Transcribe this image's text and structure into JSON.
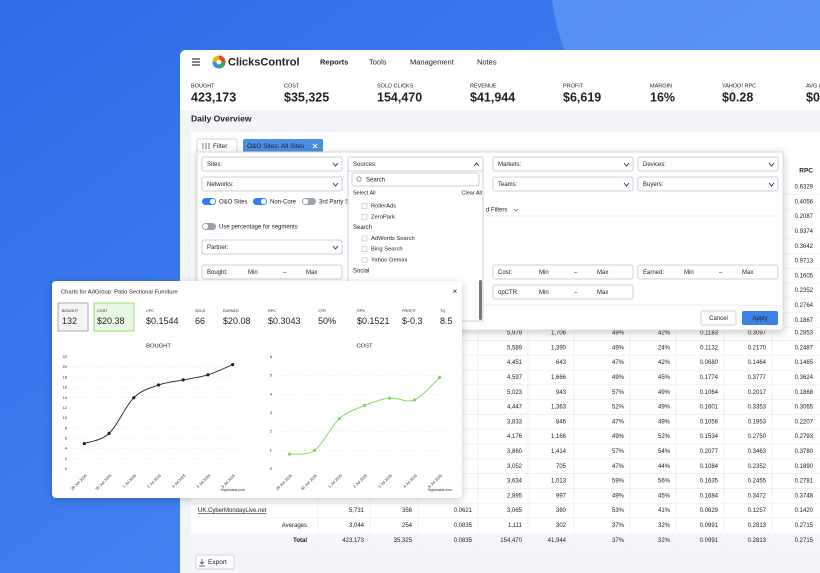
{
  "brand": "ClicksControl",
  "nav": [
    "Reports",
    "Tools",
    "Management",
    "Notes"
  ],
  "kpis": [
    {
      "label": "BOUGHT",
      "value": "423,173"
    },
    {
      "label": "COST",
      "value": "$35,325"
    },
    {
      "label": "SOLD CLICKS",
      "value": "154,470"
    },
    {
      "label": "REVENUE",
      "value": "$41,944"
    },
    {
      "label": "PROFIT",
      "value": "$6,619"
    },
    {
      "label": "MARGIN",
      "value": "16%"
    },
    {
      "label": "YAHOO! RPC",
      "value": "$0.28"
    },
    {
      "label": "AVG I",
      "value": "$0."
    }
  ],
  "section_title": "Daily Overview",
  "filter_button": "Filter",
  "chip": "O&O Sites: All Sites",
  "filters": {
    "left_selects": [
      "Sites:",
      "Networks:"
    ],
    "toggles": [
      {
        "label": "O&O Sites",
        "on": true
      },
      {
        "label": "Non-Core",
        "on": true
      },
      {
        "label": "3rd Party S",
        "on": false
      }
    ],
    "percentage": "Use percentage for segments",
    "partner": "Partner:",
    "sources": "Sources:",
    "right_selects": [
      "Markets:",
      "Devices:",
      "Teams:",
      "Buyers:"
    ],
    "ranges": [
      "Bought:",
      "Cost:",
      "Earned:",
      "opCTR:"
    ],
    "min": "Min",
    "dash": "–",
    "max": "Max",
    "more": "d Filters",
    "cancel": "Cancel",
    "apply": "Apply"
  },
  "sources_dropdown": {
    "search": "Search",
    "select_all": "Select All",
    "clear_all": "Clear All",
    "groups": [
      {
        "options": [
          "RollerAds",
          "ZeroPark"
        ]
      },
      {
        "group": "Search",
        "options": [
          "AdWords Search",
          "Bing Search",
          "Yahoo Gemini"
        ]
      },
      {
        "group": "Social",
        "options": []
      }
    ]
  },
  "table": {
    "rpc_header": "RPC",
    "rpc_upper": [
      "0.6329",
      "0.4056",
      "0.2087",
      "0.9374",
      "0.3642",
      "0.9713",
      "0.1605",
      "0.2352",
      "0.2764",
      "0.1867"
    ],
    "rows": [
      [
        "5,979",
        "1,706",
        "49%",
        "42%",
        "0.1183",
        "0.3097",
        "0.2853"
      ],
      [
        "5,589",
        "1,390",
        "49%",
        "24%",
        "0.1132",
        "0.2170",
        "0.2487"
      ],
      [
        "4,451",
        "643",
        "47%",
        "42%",
        "0.0680",
        "0.1464",
        "0.1465"
      ],
      [
        "4,597",
        "1,666",
        "49%",
        "45%",
        "0.1774",
        "0.3777",
        "0.3624"
      ],
      [
        "5,023",
        "943",
        "57%",
        "49%",
        "0.1064",
        "0.2017",
        "0.1868"
      ],
      [
        "4,447",
        "1,363",
        "52%",
        "49%",
        "0.1601",
        "0.3353",
        "0.3065"
      ],
      [
        "3,833",
        "846",
        "47%",
        "49%",
        "0.1056",
        "0.1953",
        "0.2207"
      ],
      [
        "4,176",
        "1,166",
        "49%",
        "52%",
        "0.1534",
        "0.2750",
        "0.2793"
      ],
      [
        "3,860",
        "1,414",
        "57%",
        "54%",
        "0.2077",
        "0.3463",
        "0.3780"
      ],
      [
        "3,052",
        "705",
        "47%",
        "44%",
        "0.1084",
        "0.2352",
        "0.1890"
      ],
      [
        "3,634",
        "1,013",
        "59%",
        "56%",
        "0.1635",
        "0.2455",
        "0.2781"
      ],
      [
        "2,895",
        "997",
        "49%",
        "45%",
        "0.1684",
        "0.3472",
        "0.3748"
      ]
    ],
    "site_row": {
      "name": "UK.CyberMondayLive.net",
      "cells": [
        "5,731",
        "356",
        "0.0621",
        "3,065",
        "360",
        "53%",
        "41%",
        "0.0629",
        "0.1257",
        "0.1420"
      ]
    },
    "averages": {
      "label": "Averages",
      "cells": [
        "3,044",
        "254",
        "0.0835",
        "1,111",
        "302",
        "37%",
        "32%",
        "0.0991",
        "0.2813",
        "0.2715"
      ]
    },
    "total": {
      "label": "Total",
      "cells": [
        "423,173",
        "35,325",
        "0.0835",
        "154,470",
        "41,944",
        "37%",
        "32%",
        "0.0991",
        "0.2813",
        "0.2715"
      ]
    }
  },
  "export": "Export",
  "popup": {
    "title": "Charts for AdGroup: Patio Sectional Furniture",
    "close": "×",
    "kpis": [
      {
        "label": "BOUGHT",
        "value": "132"
      },
      {
        "label": "COST",
        "value": "$20.38"
      },
      {
        "label": "CPC",
        "value": "$0.1544"
      },
      {
        "label": "SOLD",
        "value": "66"
      },
      {
        "label": "EARNED",
        "value": "$20.08"
      },
      {
        "label": "RPC",
        "value": "$0.3043"
      },
      {
        "label": "CTR",
        "value": "50%"
      },
      {
        "label": "RPS",
        "value": "$0.1521"
      },
      {
        "label": "PROFIT",
        "value": "$-0.3"
      },
      {
        "label": "TQ",
        "value": "8.5"
      }
    ]
  },
  "chart_data": [
    {
      "type": "line",
      "title": "BOUGHT",
      "color": "#222222",
      "categories": [
        "29 Jun 2025",
        "30 Jun 2025",
        "1 Jul 2025",
        "2 Jul 2025",
        "3 Jul 2025",
        "4 Jul 2025",
        "5 Jul 2025"
      ],
      "values": [
        5,
        7,
        14,
        16.5,
        17.5,
        18.5,
        20.5
      ],
      "ylim": [
        0,
        22
      ],
      "yticks": [
        0,
        2,
        4,
        6,
        8,
        10,
        12,
        14,
        16,
        18,
        20,
        22
      ],
      "grid": true,
      "credit": "Highcharts.com"
    },
    {
      "type": "line",
      "title": "COST",
      "color": "#7ed957",
      "categories": [
        "29 Jun 2025",
        "30 Jun 2025",
        "1 Jul 2025",
        "2 Jul 2025",
        "3 Jul 2025",
        "4 Jul 2025",
        "5 Jul 2025"
      ],
      "values": [
        0.8,
        1,
        2.7,
        3.4,
        3.8,
        3.7,
        4.9
      ],
      "ylim": [
        0,
        6
      ],
      "yticks": [
        0,
        1,
        2,
        3,
        4,
        5,
        6
      ],
      "grid": true,
      "credit": "Highcharts.com"
    }
  ]
}
